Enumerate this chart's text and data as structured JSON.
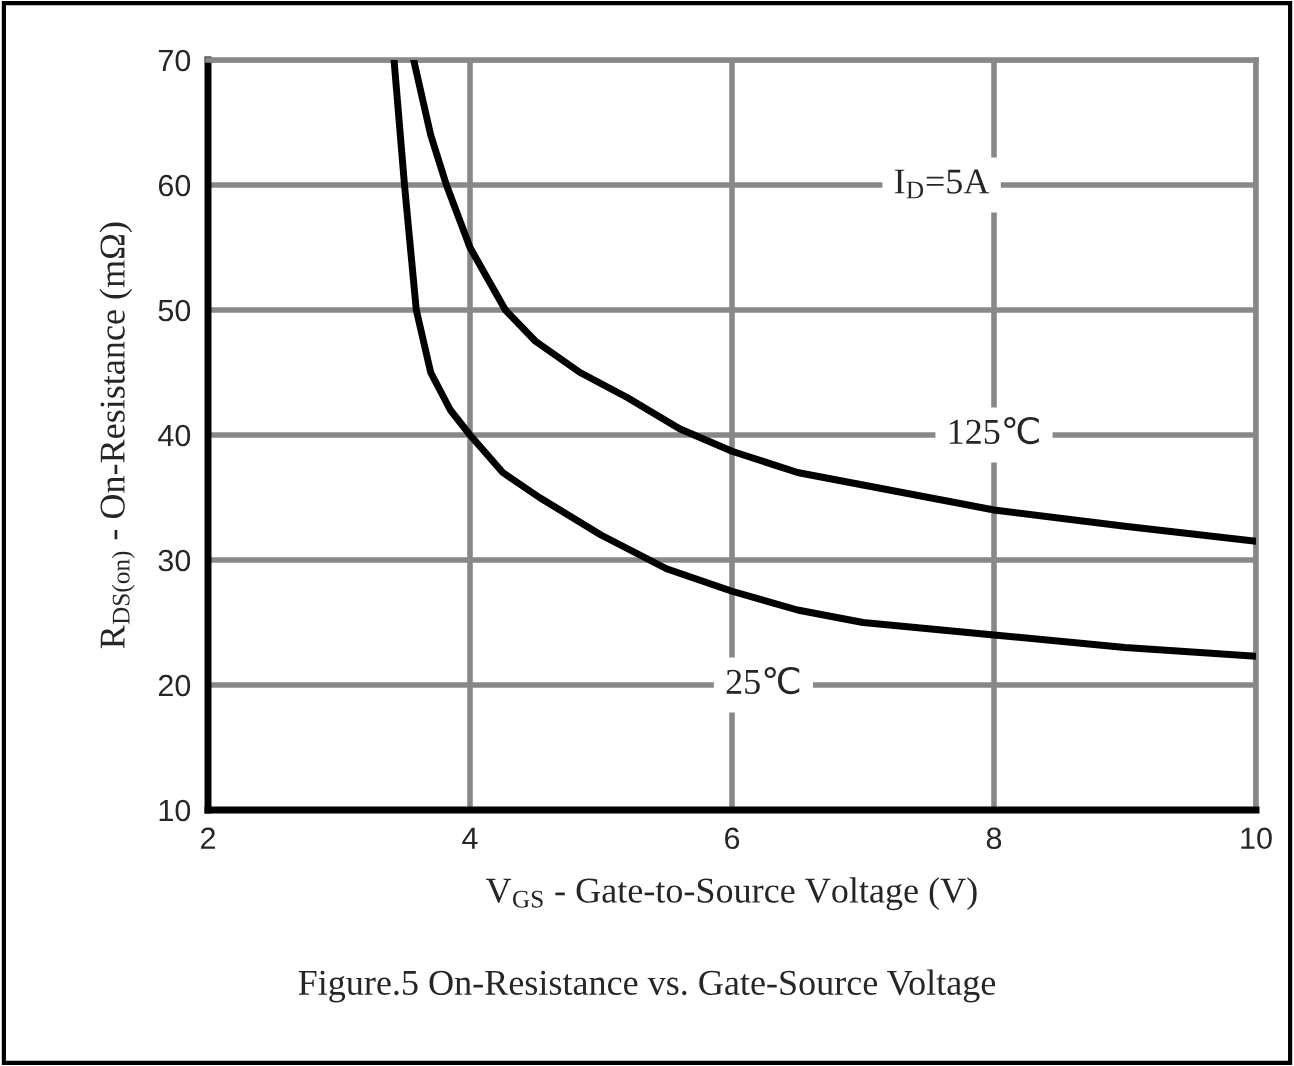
{
  "chart_data": {
    "type": "line",
    "xlabel": "V$_{GS}$ - Gate-to-Source Voltage (V)",
    "ylabel": "R$_{DS(on)}$ - On-Resistance (mΩ)",
    "xlim": [
      2,
      10
    ],
    "ylim": [
      10,
      70
    ],
    "xticks": [
      2,
      4,
      6,
      8,
      10
    ],
    "yticks": [
      10,
      20,
      30,
      40,
      50,
      60,
      70
    ],
    "grid": true,
    "marker": "none",
    "line_style": "solid",
    "series": [
      {
        "name": "25℃",
        "color": "#000000",
        "x": [
          3.42,
          3.5,
          3.59,
          3.7,
          3.85,
          4.0,
          4.25,
          4.53,
          5.0,
          5.5,
          6.0,
          6.5,
          7.0,
          8.0,
          9.0,
          10.0
        ],
        "values": [
          70,
          60,
          50,
          45,
          42,
          40,
          37,
          35,
          32,
          29.3,
          27.5,
          26,
          25,
          24,
          23,
          22.3
        ]
      },
      {
        "name": "125℃",
        "color": "#000000",
        "x": [
          3.57,
          3.7,
          3.82,
          4.0,
          4.27,
          4.5,
          4.84,
          5.2,
          5.6,
          6.0,
          6.5,
          7.0,
          8.0,
          9.0,
          10.0
        ],
        "values": [
          70,
          64,
          60,
          55,
          50,
          47.5,
          45,
          43,
          40.5,
          38.7,
          37,
          36,
          34,
          32.7,
          31.5
        ]
      }
    ],
    "annotations": [
      "I$_{D}$=5A",
      "Figure.5 On-Resistance vs. Gate-Source Voltage"
    ]
  }
}
